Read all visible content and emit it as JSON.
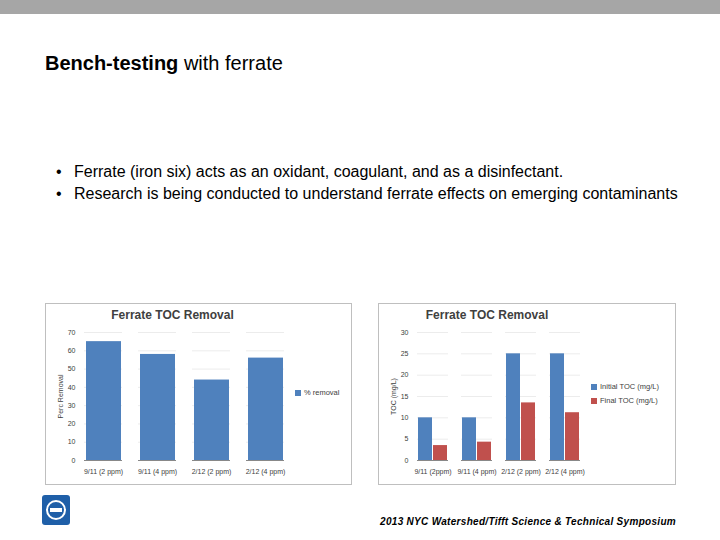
{
  "slide": {
    "title_runs": [
      {
        "text": "Bench-testing",
        "bold": true
      },
      {
        "text": " with ferrate",
        "bold": false
      }
    ],
    "bullets": [
      "Ferrate (iron six) acts as an oxidant, coagulant, and as a disinfectant.",
      "Research is being conducted to understand ferrate effects on emerging contaminants"
    ],
    "footer": "2013 NYC Watershed/Tifft Science & Technical Symposium"
  },
  "chart_data": [
    {
      "type": "bar",
      "title": "Ferrate TOC Removal",
      "y_label": "Perc Removal",
      "categories": [
        "9/11 (2 ppm)",
        "9/11 (4 ppm)",
        "2/12 (2 ppm)",
        "2/12 (4 ppm)"
      ],
      "series": [
        {
          "name": "% removal",
          "color": "#4f81bd",
          "values": [
            65,
            58,
            44,
            56
          ]
        }
      ],
      "ylim": [
        0,
        70
      ],
      "yticks": [
        0,
        10,
        20,
        30,
        40,
        50,
        60,
        70
      ],
      "grid": true,
      "legend": "right"
    },
    {
      "type": "bar",
      "title": "Ferrate TOC Removal",
      "y_label": "TOC (mg/L)",
      "categories": [
        "9/11 (2ppm)",
        "9/11 (4 ppm)",
        "2/12 (2 ppm)",
        "2/12 (4 ppm)"
      ],
      "series": [
        {
          "name": "Initial TOC (mg/L)",
          "color": "#4f81bd",
          "values": [
            10,
            10,
            25,
            25
          ]
        },
        {
          "name": "Final TOC (mg/L)",
          "color": "#c0504d",
          "values": [
            3.5,
            4.3,
            13.5,
            11.2
          ]
        }
      ],
      "ylim": [
        0,
        30
      ],
      "yticks": [
        0,
        5,
        10,
        15,
        20,
        25,
        30
      ],
      "grid": true,
      "legend": "right"
    }
  ]
}
